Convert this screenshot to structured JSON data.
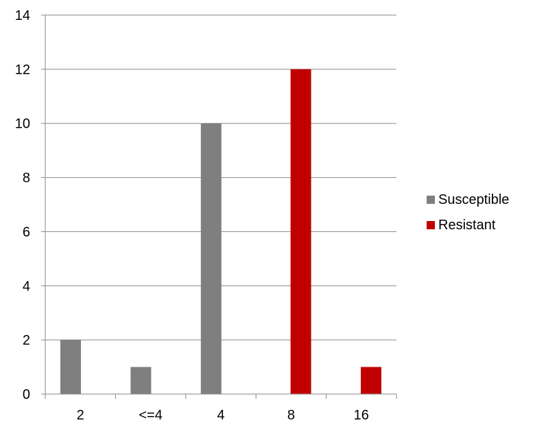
{
  "chart_data": {
    "type": "bar",
    "title": "",
    "xlabel": "",
    "ylabel": "",
    "categories": [
      "2",
      "<=4",
      "4",
      "8",
      "16"
    ],
    "series": [
      {
        "name": "Susceptible",
        "color": "#7f7f7f",
        "values": [
          2,
          1,
          10,
          0,
          0
        ]
      },
      {
        "name": "Resistant",
        "color": "#c00000",
        "values": [
          0,
          0,
          0,
          12,
          1
        ]
      }
    ],
    "ylim": [
      0,
      14
    ],
    "yticks": [
      "0",
      "2",
      "4",
      "6",
      "8",
      "10",
      "12",
      "14"
    ],
    "grid": true,
    "legend_position": "right"
  }
}
